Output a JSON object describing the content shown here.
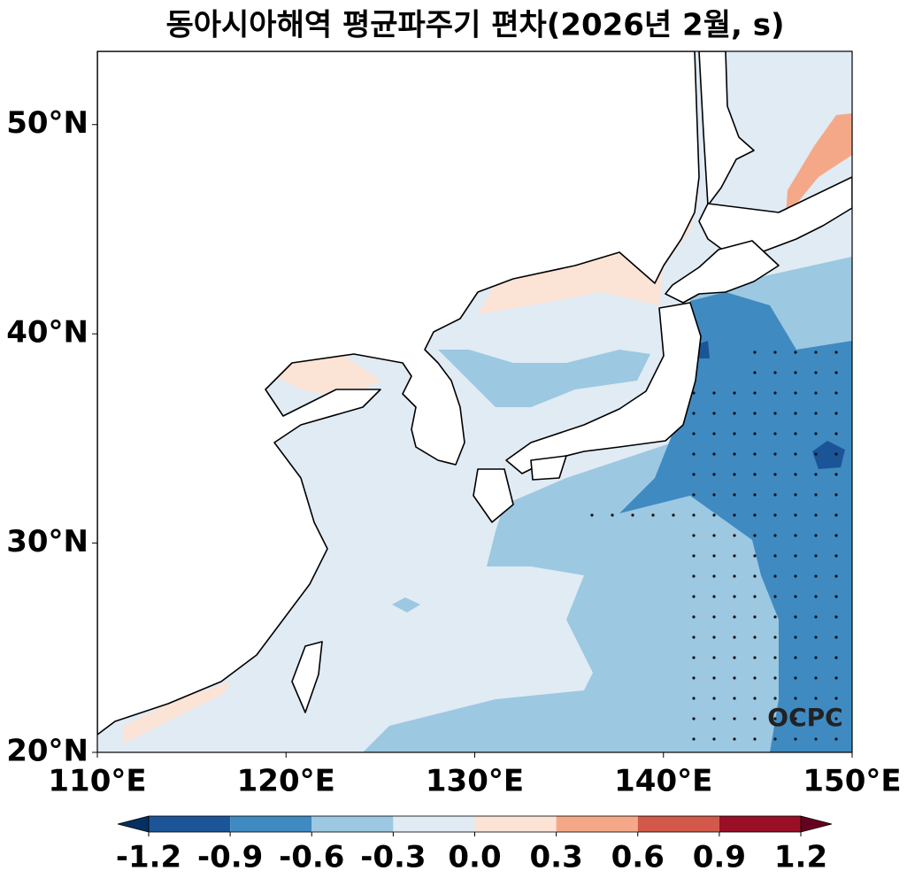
{
  "chart_data": {
    "type": "map",
    "title": "동아시아해역 평균파주기 편차(2026년 2월, s)",
    "xlim": [
      110,
      150
    ],
    "ylim": [
      20,
      53.5
    ],
    "xticks": [
      {
        "value": 110,
        "label": "110°E"
      },
      {
        "value": 120,
        "label": "120°E"
      },
      {
        "value": 130,
        "label": "130°E"
      },
      {
        "value": 140,
        "label": "140°E"
      },
      {
        "value": 150,
        "label": "150°E"
      }
    ],
    "yticks": [
      {
        "value": 20,
        "label": "20°N"
      },
      {
        "value": 30,
        "label": "30°N"
      },
      {
        "value": 40,
        "label": "40°N"
      },
      {
        "value": 50,
        "label": "50°N"
      }
    ],
    "colorbar": {
      "ticks": [
        -1.2,
        -0.9,
        -0.6,
        -0.3,
        {
          "value": 0,
          "label": "0.0"
        },
        0.3,
        0.6,
        0.9,
        1.2
      ],
      "colors": [
        "#1b5597",
        "#3f8ac1",
        "#9cc8e1",
        "#e0ebf4",
        "#fbe3d6",
        "#f5a888",
        "#d25849",
        "#980f26"
      ],
      "under_color": "#053061",
      "over_color": "#67001f"
    },
    "watermark": "OCPC"
  }
}
